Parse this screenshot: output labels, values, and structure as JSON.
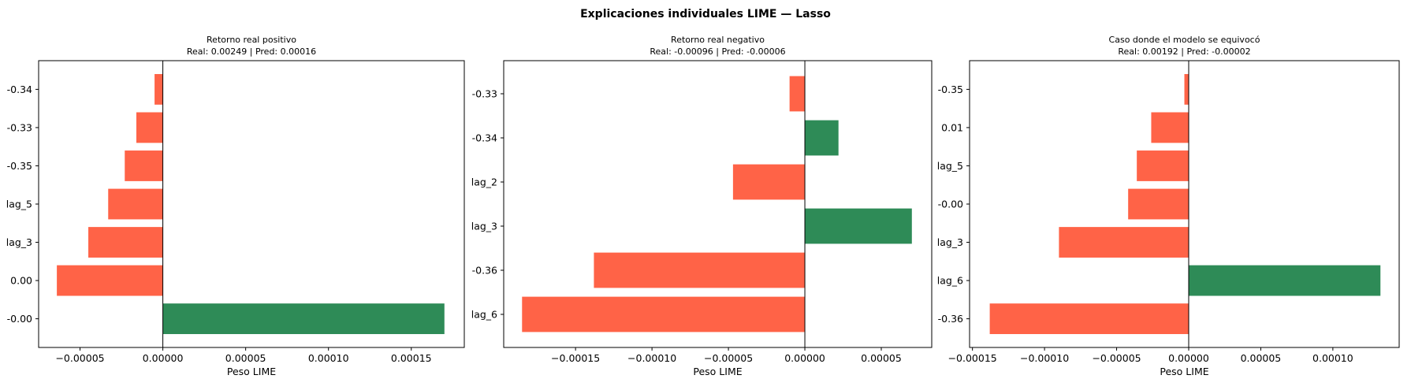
{
  "suptitle": "Explicaciones individuales LIME — Lasso",
  "colors": {
    "negative": "#ff6347",
    "positive": "#2e8b57",
    "axis": "#000000"
  },
  "chart_data": [
    {
      "type": "bar",
      "orientation": "horizontal",
      "title": "Retorno real positivo",
      "subtitle": "Real: 0.00249 | Pred: 0.00016",
      "xlabel": "Peso LIME",
      "categories": [
        "-0.00",
        "0.00",
        "lag_3",
        "lag_5",
        "-0.35",
        "-0.33",
        "-0.34"
      ],
      "values": [
        0.00017,
        -6.4e-05,
        -4.5e-05,
        -3.3e-05,
        -2.3e-05,
        -1.6e-05,
        -5e-06
      ],
      "xlim": [
        -7.5e-05,
        0.000182
      ],
      "xticks": [
        -5e-05,
        0,
        5e-05,
        0.0001,
        0.00015
      ],
      "xtick_labels": [
        "−0.00005",
        "0.00000",
        "0.00005",
        "0.00010",
        "0.00015"
      ],
      "grid": false
    },
    {
      "type": "bar",
      "orientation": "horizontal",
      "title": "Retorno real negativo",
      "subtitle": "Real: -0.00096 | Pred: -0.00006",
      "xlabel": "Peso LIME",
      "categories": [
        "lag_6",
        "-0.36",
        "lag_3",
        "lag_2",
        "-0.34",
        "-0.33"
      ],
      "values": [
        -0.000185,
        -0.000138,
        7e-05,
        -4.7e-05,
        2.2e-05,
        -1e-05
      ],
      "xlim": [
        -0.000197,
        8.3e-05
      ],
      "xticks": [
        -0.00015,
        -0.0001,
        -5e-05,
        0,
        5e-05
      ],
      "xtick_labels": [
        "−0.00015",
        "−0.00010",
        "−0.00005",
        "0.00000",
        "0.00005"
      ],
      "grid": false
    },
    {
      "type": "bar",
      "orientation": "horizontal",
      "title": "Caso donde el modelo se equivocó",
      "subtitle": "Real: 0.00192 | Pred: -0.00002",
      "xlabel": "Peso LIME",
      "categories": [
        "-0.36",
        "lag_6",
        "lag_3",
        "-0.00",
        "lag_5",
        "0.01",
        "-0.35"
      ],
      "values": [
        -0.000138,
        0.000133,
        -9e-05,
        -4.2e-05,
        -3.6e-05,
        -2.6e-05,
        -3e-06
      ],
      "xlim": [
        -0.000152,
        0.000146
      ],
      "xticks": [
        -0.0001,
        -5e-05,
        0,
        5e-05,
        0.0001,
        -0.00015
      ],
      "xtick_labels": [
        "−0.00010",
        "−0.00005",
        "0.00000",
        "0.00005",
        "0.00010",
        "−0.00015"
      ],
      "grid": false
    }
  ]
}
